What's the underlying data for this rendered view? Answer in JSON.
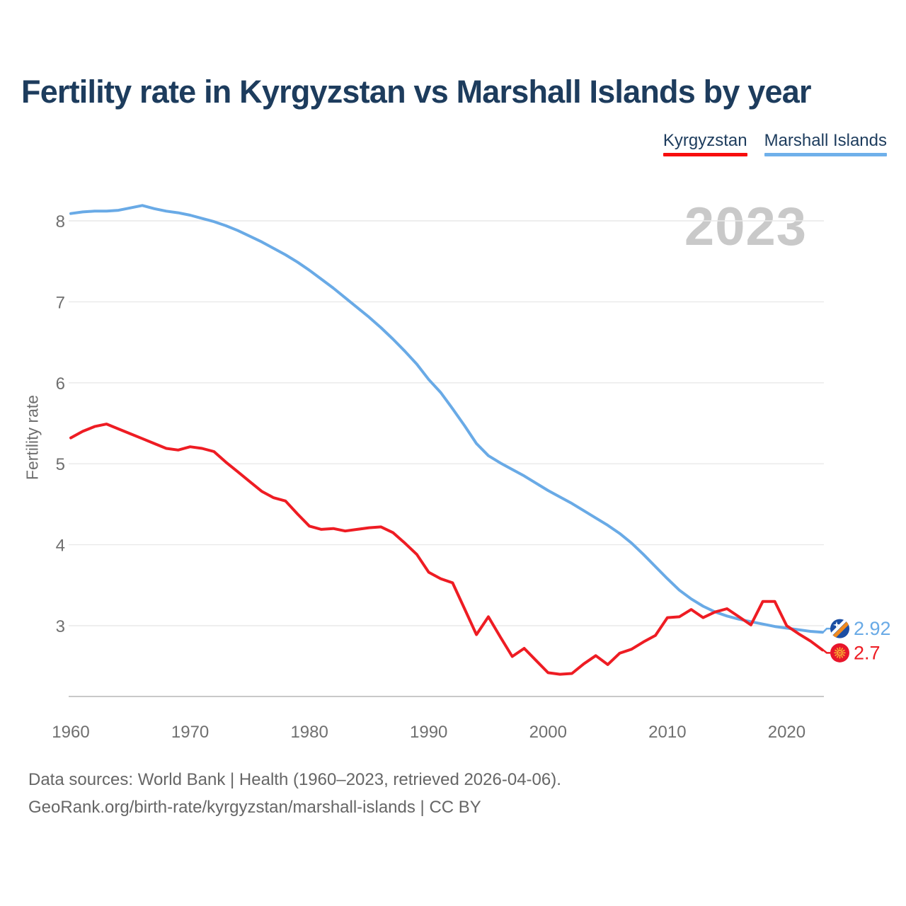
{
  "header": {
    "title": "Fertility rate in Kyrgyzstan vs Marshall Islands by year"
  },
  "legend": {
    "items": [
      {
        "label": "Kyrgyzstan",
        "color": "#f70d0d"
      },
      {
        "label": "Marshall Islands",
        "color": "#6fb0ea"
      }
    ]
  },
  "chart_data": {
    "type": "line",
    "title": "Fertility rate in Kyrgyzstan vs Marshall Islands by year",
    "xlabel": "",
    "ylabel": "Fertility rate",
    "watermark": "2023",
    "grid": true,
    "legend_position": "top-right",
    "xlim": [
      1960,
      2023
    ],
    "ylim": [
      2.1,
      8.6
    ],
    "xticks": [
      1960,
      1970,
      1980,
      1990,
      2000,
      2010,
      2020
    ],
    "yticks": [
      3,
      4,
      5,
      6,
      7,
      8
    ],
    "years": [
      1960,
      1961,
      1962,
      1963,
      1964,
      1965,
      1966,
      1967,
      1968,
      1969,
      1970,
      1971,
      1972,
      1973,
      1974,
      1975,
      1976,
      1977,
      1978,
      1979,
      1980,
      1981,
      1982,
      1983,
      1984,
      1985,
      1986,
      1987,
      1988,
      1989,
      1990,
      1991,
      1992,
      1993,
      1994,
      1995,
      1996,
      1997,
      1998,
      1999,
      2000,
      2001,
      2002,
      2003,
      2004,
      2005,
      2006,
      2007,
      2008,
      2009,
      2010,
      2011,
      2012,
      2013,
      2014,
      2015,
      2016,
      2017,
      2018,
      2019,
      2020,
      2021,
      2022,
      2023
    ],
    "series": [
      {
        "name": "Kyrgyzstan",
        "color": "#ee1c23",
        "flag": "kyrgyzstan",
        "end_label": "2.7",
        "values": [
          5.32,
          5.4,
          5.46,
          5.49,
          5.43,
          5.37,
          5.31,
          5.25,
          5.19,
          5.17,
          5.21,
          5.19,
          5.15,
          5.02,
          4.9,
          4.78,
          4.66,
          4.58,
          4.54,
          4.38,
          4.23,
          4.19,
          4.2,
          4.17,
          4.19,
          4.21,
          4.22,
          4.15,
          4.02,
          3.88,
          3.66,
          3.58,
          3.53,
          3.21,
          2.89,
          3.11,
          2.86,
          2.62,
          2.72,
          2.57,
          2.42,
          2.4,
          2.41,
          2.53,
          2.63,
          2.52,
          2.66,
          2.71,
          2.8,
          2.88,
          3.1,
          3.11,
          3.2,
          3.1,
          3.17,
          3.21,
          3.11,
          3.01,
          3.3,
          3.3,
          3.0,
          2.9,
          2.81,
          2.7
        ]
      },
      {
        "name": "Marshall Islands",
        "color": "#69aae6",
        "flag": "marshall-islands",
        "end_label": "2.92",
        "values": [
          8.09,
          8.11,
          8.12,
          8.12,
          8.13,
          8.16,
          8.19,
          8.15,
          8.12,
          8.1,
          8.07,
          8.03,
          7.99,
          7.94,
          7.88,
          7.81,
          7.74,
          7.66,
          7.58,
          7.49,
          7.39,
          7.28,
          7.17,
          7.05,
          6.93,
          6.81,
          6.68,
          6.54,
          6.39,
          6.23,
          6.04,
          5.88,
          5.68,
          5.47,
          5.25,
          5.1,
          5.01,
          4.93,
          4.85,
          4.76,
          4.67,
          4.59,
          4.51,
          4.42,
          4.33,
          4.24,
          4.14,
          4.02,
          3.88,
          3.73,
          3.58,
          3.44,
          3.33,
          3.24,
          3.17,
          3.12,
          3.08,
          3.05,
          3.02,
          2.99,
          2.97,
          2.95,
          2.93,
          2.92
        ]
      }
    ]
  },
  "footer": {
    "line1": "Data sources: World Bank | Health (1960–2023, retrieved 2026-04-06).",
    "line2": "GeoRank.org/birth-rate/kyrgyzstan/marshall-islands | CC BY"
  }
}
